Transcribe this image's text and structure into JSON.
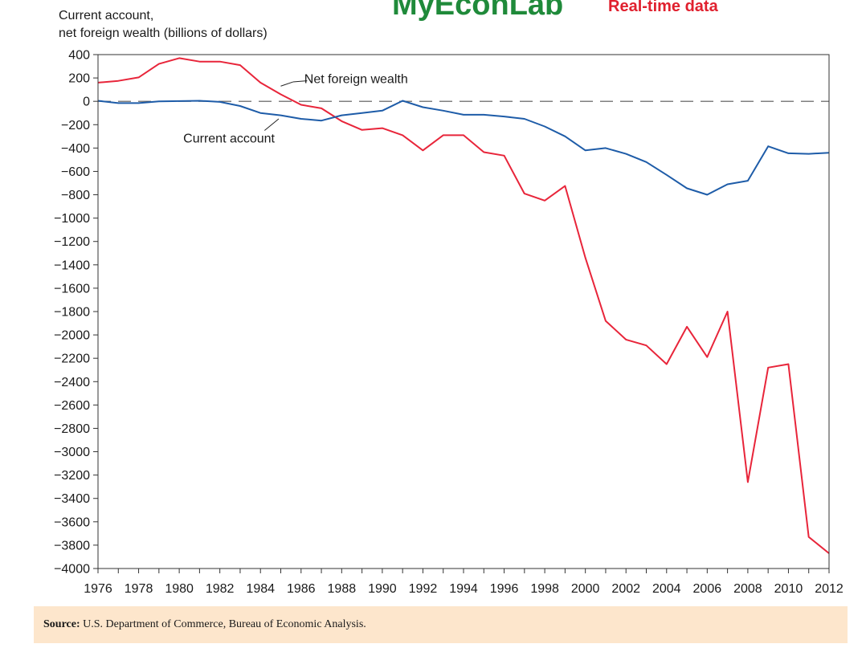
{
  "brand": {
    "name": "MyEconLab",
    "tagline": "Real-time data",
    "name_color": "#1f8a3a",
    "tagline_color": "#e0202e"
  },
  "source": {
    "label": "Source:",
    "text": " U.S. Department of Commerce, Bureau of Economic Analysis."
  },
  "colors": {
    "net_foreign_wealth": "#e8253a",
    "current_account": "#1e5ca8",
    "axis": "#333333",
    "zero_line": "#555555",
    "source_bg": "#fde6cc"
  },
  "chart_data": {
    "type": "line",
    "ylabel_lines": [
      "Current account,",
      "net foreign wealth (billions of dollars)"
    ],
    "xlim": [
      1976,
      2012
    ],
    "ylim": [
      -4000,
      400
    ],
    "yticks": [
      400,
      200,
      0,
      -200,
      -400,
      -600,
      -800,
      -1000,
      -1200,
      -1400,
      -1600,
      -1800,
      -2000,
      -2200,
      -2400,
      -2600,
      -2800,
      -3000,
      -3200,
      -3400,
      -3600,
      -3800,
      -4000
    ],
    "ytick_labels": [
      "400",
      "200",
      "0",
      "−200",
      "−400",
      "−600",
      "−800",
      "−1000",
      "−1200",
      "−1400",
      "−1600",
      "−1800",
      "−2000",
      "−2200",
      "−2400",
      "−2600",
      "−2800",
      "−3000",
      "−3200",
      "−3400",
      "−3600",
      "−3800",
      "−4000"
    ],
    "xticks": [
      1976,
      1978,
      1980,
      1982,
      1984,
      1986,
      1988,
      1990,
      1992,
      1994,
      1996,
      1998,
      2000,
      2002,
      2004,
      2006,
      2008,
      2010,
      2012
    ],
    "xtick_labels": [
      "1976",
      "1978",
      "1980",
      "1982",
      "1984",
      "1986",
      "1988",
      "1990",
      "1992",
      "1994",
      "1996",
      "1998",
      "2000",
      "2002",
      "2004",
      "2006",
      "2008",
      "2010",
      "2012"
    ],
    "grid": false,
    "reference_line": {
      "y": 0,
      "style": "dashed"
    },
    "series": [
      {
        "name": "Net foreign wealth",
        "color": "#e8253a",
        "x": [
          1976,
          1977,
          1978,
          1979,
          1980,
          1981,
          1982,
          1983,
          1984,
          1985,
          1986,
          1987,
          1988,
          1989,
          1990,
          1991,
          1992,
          1993,
          1994,
          1995,
          1996,
          1997,
          1998,
          1999,
          2000,
          2001,
          2002,
          2003,
          2004,
          2005,
          2006,
          2007,
          2008,
          2009,
          2010,
          2011,
          2012
        ],
        "y": [
          160,
          175,
          205,
          320,
          370,
          340,
          340,
          310,
          160,
          60,
          -30,
          -60,
          -170,
          -245,
          -230,
          -290,
          -420,
          -290,
          -290,
          -435,
          -465,
          -790,
          -850,
          -725,
          -1340,
          -1880,
          -2040,
          -2090,
          -2250,
          -1930,
          -2190,
          -1800,
          -3260,
          -2280,
          -2250,
          -3730,
          -3870
        ],
        "label": {
          "text": "Net foreign wealth",
          "x": 1986.0,
          "y": 190
        }
      },
      {
        "name": "Current account",
        "color": "#1e5ca8",
        "x": [
          1976,
          1977,
          1978,
          1979,
          1980,
          1981,
          1982,
          1983,
          1984,
          1985,
          1986,
          1987,
          1988,
          1989,
          1990,
          1991,
          1992,
          1993,
          1994,
          1995,
          1996,
          1997,
          1998,
          1999,
          2000,
          2001,
          2002,
          2003,
          2004,
          2005,
          2006,
          2007,
          2008,
          2009,
          2010,
          2011,
          2012
        ],
        "y": [
          5,
          -15,
          -15,
          0,
          2,
          5,
          -5,
          -40,
          -100,
          -120,
          -150,
          -165,
          -120,
          -100,
          -80,
          5,
          -50,
          -80,
          -115,
          -115,
          -130,
          -150,
          -215,
          -300,
          -420,
          -400,
          -450,
          -520,
          -630,
          -745,
          -800,
          -710,
          -680,
          -385,
          -445,
          -450,
          -440
        ],
        "label": {
          "text": "Current account",
          "x": 1980.2,
          "y": -320
        }
      }
    ]
  }
}
